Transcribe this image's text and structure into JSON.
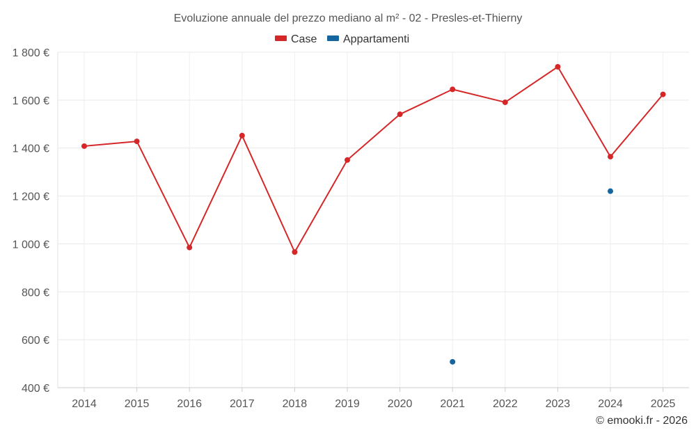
{
  "chart_data": {
    "type": "line",
    "title": "Evoluzione annuale del prezzo mediano al m² - 02 - Presles-et-Thierny",
    "xlabel": "",
    "ylabel": "",
    "categories": [
      "2014",
      "2015",
      "2016",
      "2017",
      "2018",
      "2019",
      "2020",
      "2021",
      "2022",
      "2023",
      "2024",
      "2025"
    ],
    "ylim": [
      400,
      1800
    ],
    "yticks": [
      400,
      600,
      800,
      1000,
      1200,
      1400,
      1600,
      1800
    ],
    "ytick_labels": [
      "400 €",
      "600 €",
      "800 €",
      "1 000 €",
      "1 200 €",
      "1 400 €",
      "1 600 €",
      "1 800 €"
    ],
    "grid": true,
    "legend_position": "top-center",
    "series": [
      {
        "name": "Case",
        "color": "#d62728",
        "values": [
          1408,
          1428,
          985,
          1452,
          966,
          1350,
          1541,
          1645,
          1591,
          1739,
          1364,
          1624
        ]
      },
      {
        "name": "Appartamenti",
        "color": "#1565a0",
        "values": [
          null,
          null,
          null,
          null,
          null,
          null,
          null,
          508,
          null,
          null,
          1220,
          null
        ]
      }
    ],
    "credit": "© emooki.fr - 2026"
  }
}
